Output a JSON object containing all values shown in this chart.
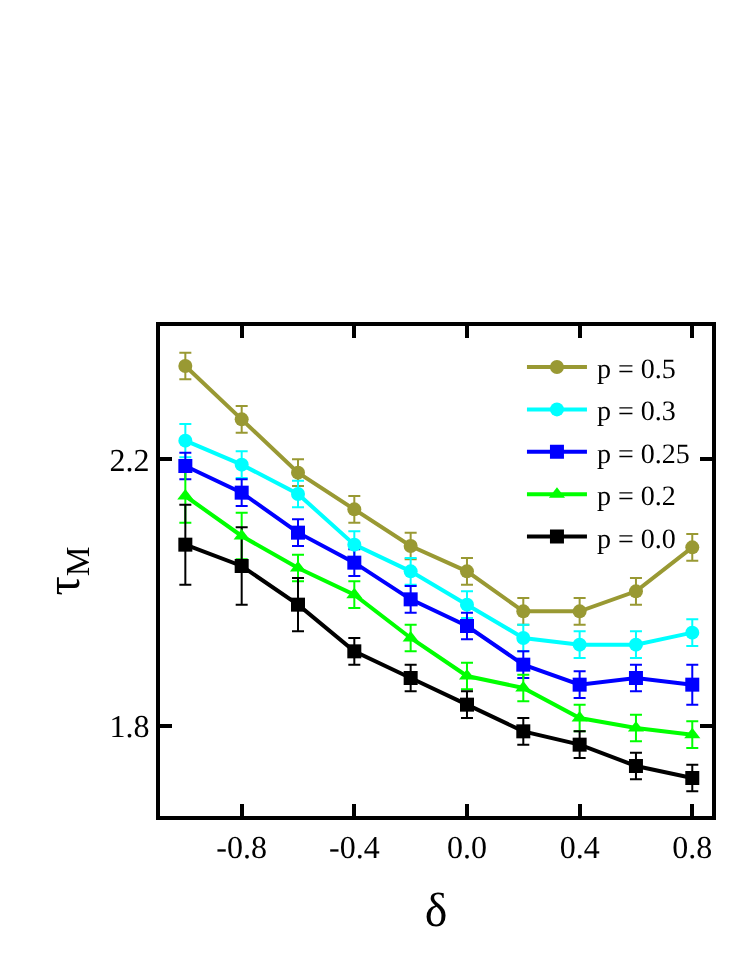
{
  "chart_data": {
    "type": "line",
    "xlabel": "δ",
    "ylabel": "τ$_{M}$",
    "x": [
      -1.0,
      -0.8,
      -0.6,
      -0.4,
      -0.2,
      0.0,
      0.2,
      0.4,
      0.6,
      0.8
    ],
    "xlim": [
      -1.09,
      0.87
    ],
    "xticks": [
      -0.8,
      -0.4,
      {
        "value": 0.0,
        "label": "0.0"
      },
      0.4,
      0.8
    ],
    "ylim": [
      1.665,
      2.4
    ],
    "yticks": [
      1.8,
      2.2
    ],
    "legend": "top right",
    "line_style": "solid",
    "series": [
      {
        "name": "p = 0.5",
        "color": "#999933",
        "marker": "circle",
        "values": [
          2.34,
          2.26,
          2.18,
          2.125,
          2.07,
          2.032,
          1.972,
          1.972,
          2.002,
          2.068
        ],
        "errors": [
          0.02,
          0.02,
          0.02,
          0.02,
          0.02,
          0.02,
          0.02,
          0.02,
          0.02,
          0.02
        ]
      },
      {
        "name": "p = 0.3",
        "color": "#00ffff",
        "marker": "circle",
        "values": [
          2.228,
          2.192,
          2.148,
          2.072,
          2.032,
          1.982,
          1.932,
          1.922,
          1.922,
          1.94
        ],
        "errors": [
          0.025,
          0.02,
          0.02,
          0.02,
          0.02,
          0.02,
          0.02,
          0.02,
          0.02,
          0.02
        ]
      },
      {
        "name": "p = 0.25",
        "color": "#0000ff",
        "marker": "square",
        "values": [
          2.19,
          2.15,
          2.09,
          2.045,
          1.99,
          1.95,
          1.892,
          1.862,
          1.872,
          1.862
        ],
        "errors": [
          0.02,
          0.02,
          0.02,
          0.02,
          0.02,
          0.02,
          0.02,
          0.02,
          0.02,
          0.03
        ]
      },
      {
        "name": "p = 0.2",
        "color": "#00ff00",
        "marker": "triangle",
        "values": [
          2.145,
          2.085,
          2.037,
          1.997,
          1.932,
          1.875,
          1.857,
          1.812,
          1.797,
          1.787
        ],
        "errors": [
          0.04,
          0.035,
          0.02,
          0.02,
          0.02,
          0.02,
          0.02,
          0.02,
          0.02,
          0.02
        ]
      },
      {
        "name": "p = 0.0",
        "color": "#000000",
        "marker": "square",
        "values": [
          2.072,
          2.04,
          1.982,
          1.912,
          1.872,
          1.832,
          1.792,
          1.772,
          1.74,
          1.722
        ],
        "errors": [
          0.06,
          0.058,
          0.04,
          0.02,
          0.02,
          0.02,
          0.02,
          0.02,
          0.02,
          0.02
        ]
      }
    ]
  }
}
